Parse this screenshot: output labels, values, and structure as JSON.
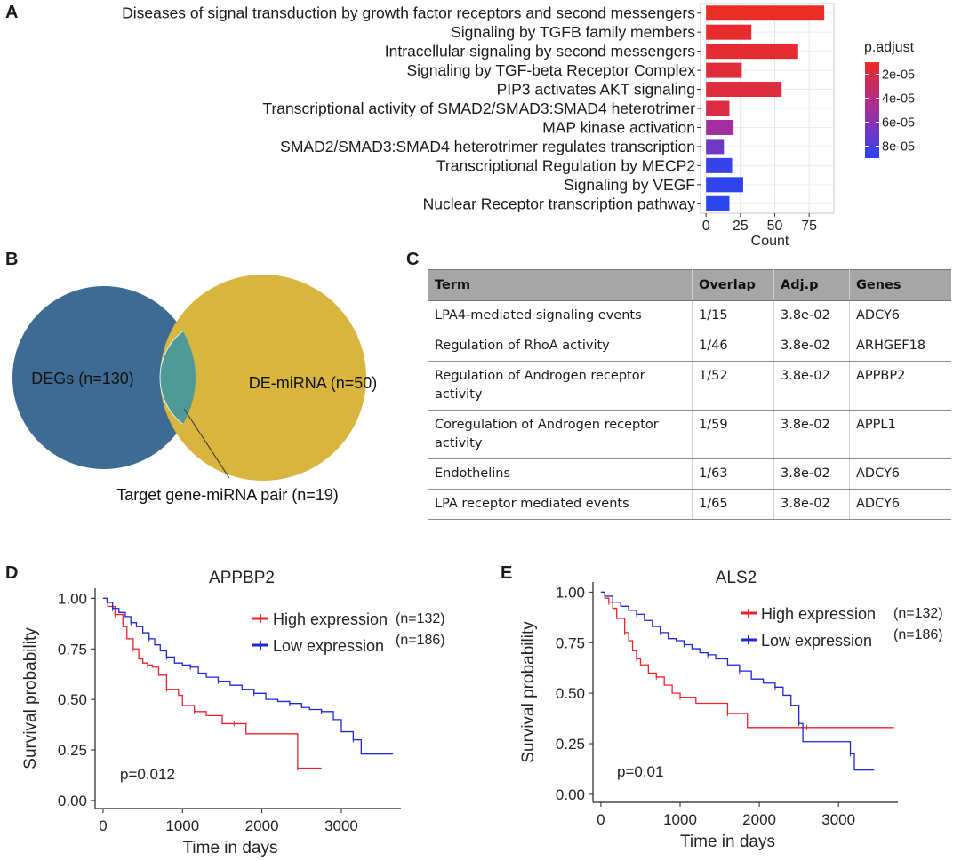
{
  "panel_labels": {
    "a": "A",
    "b": "B",
    "c": "C",
    "d": "D",
    "e": "E"
  },
  "colors": {
    "high": "#e8222a",
    "low": "#1d27d6",
    "venn_degs": "#3d6b94",
    "venn_mirna": "#d8b53f",
    "venn_overlap": "#4f9a98"
  },
  "chart_data": [
    {
      "panel": "A",
      "type": "bar",
      "orientation": "horizontal",
      "categories": [
        "Diseases of signal transduction by growth factor receptors and second messengers",
        "Signaling by TGFB family members",
        "Intracellular signaling by second messengers",
        "Signaling by TGF-beta Receptor Complex",
        "PIP3 activates AKT signaling",
        "Transcriptional activity of SMAD2/SMAD3:SMAD4 heterotrimer",
        "MAP kinase activation",
        "SMAD2/SMAD3:SMAD4 heterotrimer regulates transcription",
        "Transcriptional Regulation by MECP2",
        "Signaling by VEGF",
        "Nuclear Receptor transcription pathway"
      ],
      "values": [
        86,
        33,
        67,
        26,
        55,
        17,
        20,
        13,
        19,
        27,
        17
      ],
      "p_adjust": [
        1e-05,
        1.2e-05,
        1.4e-05,
        1.6e-05,
        1.8e-05,
        2e-05,
        5e-05,
        6.8e-05,
        8.6e-05,
        8.8e-05,
        9e-05
      ],
      "xlabel": "Count",
      "xticks": [
        0,
        25,
        50,
        75
      ],
      "xlim": [
        -4,
        93
      ],
      "legend": {
        "title": "p.adjust",
        "labels": [
          "2e-05",
          "4e-05",
          "6e-05",
          "8e-05"
        ],
        "values": [
          2e-05,
          4e-05,
          6e-05,
          8e-05
        ],
        "range": [
          1e-05,
          9e-05
        ],
        "position": "right"
      }
    },
    {
      "panel": "B",
      "type": "venn",
      "sets": [
        {
          "name": "DEGs (n=130)"
        },
        {
          "name": "DE-miRNA (n=50)"
        }
      ],
      "intersection": "Target gene-miRNA pair (n=19)"
    },
    {
      "panel": "C",
      "type": "table",
      "columns": [
        "Term",
        "Overlap",
        "Adj.p",
        "Genes"
      ],
      "rows": [
        [
          "LPA4-mediated signaling events",
          "1/15",
          "3.8e-02",
          "ADCY6"
        ],
        [
          "Regulation of RhoA activity",
          "1/46",
          "3.8e-02",
          "ARHGEF18"
        ],
        [
          "Regulation of Androgen receptor activity",
          "1/52",
          "3.8e-02",
          "APPBP2"
        ],
        [
          "Coregulation of Androgen receptor activity",
          "1/59",
          "3.8e-02",
          "APPL1"
        ],
        [
          "Endothelins",
          "1/63",
          "3.8e-02",
          "ADCY6"
        ],
        [
          "LPA receptor mediated events",
          "1/65",
          "3.8e-02",
          "ADCY6"
        ]
      ]
    },
    {
      "panel": "D",
      "type": "line",
      "subtype": "kaplan-meier",
      "title": "APPBP2",
      "xlabel": "Time in days",
      "ylabel": "Survival probability",
      "xlim": [
        -100,
        3750
      ],
      "ylim": [
        -0.04,
        1.05
      ],
      "xticks": [
        0,
        1000,
        2000,
        3000
      ],
      "yticks": [
        0.0,
        0.25,
        0.5,
        0.75,
        1.0
      ],
      "ytick_labels": [
        "0.00",
        "0.25",
        "0.50",
        "0.75",
        "1.00"
      ],
      "annotation": "p=0.012",
      "series": [
        {
          "name": "High expression",
          "n_label": "(n=132)",
          "color": "#e8222a",
          "x": [
            0,
            60,
            150,
            250,
            300,
            380,
            450,
            500,
            560,
            620,
            700,
            800,
            950,
            1000,
            1150,
            1300,
            1500,
            1650,
            1800,
            2100,
            2450,
            2750
          ],
          "y": [
            1.0,
            0.96,
            0.92,
            0.86,
            0.8,
            0.75,
            0.7,
            0.68,
            0.67,
            0.66,
            0.62,
            0.55,
            0.52,
            0.47,
            0.44,
            0.42,
            0.38,
            0.38,
            0.33,
            0.33,
            0.16,
            0.16
          ]
        },
        {
          "name": "Low expression",
          "n_label": "(n=186)",
          "color": "#1d27d6",
          "x": [
            0,
            50,
            120,
            200,
            280,
            350,
            420,
            500,
            580,
            650,
            720,
            800,
            900,
            1000,
            1100,
            1200,
            1300,
            1450,
            1600,
            1750,
            1900,
            2050,
            2200,
            2350,
            2500,
            2600,
            2750,
            2900,
            3000,
            3150,
            3250,
            3650
          ],
          "y": [
            1.0,
            0.98,
            0.95,
            0.93,
            0.91,
            0.88,
            0.86,
            0.83,
            0.8,
            0.77,
            0.74,
            0.71,
            0.68,
            0.67,
            0.66,
            0.63,
            0.61,
            0.59,
            0.57,
            0.55,
            0.53,
            0.5,
            0.49,
            0.48,
            0.46,
            0.45,
            0.44,
            0.4,
            0.34,
            0.3,
            0.23,
            0.23
          ]
        }
      ]
    },
    {
      "panel": "E",
      "type": "line",
      "subtype": "kaplan-meier",
      "title": "ALS2",
      "xlabel": "Time in days",
      "ylabel": "Survival probability",
      "xlim": [
        -100,
        3750
      ],
      "ylim": [
        -0.04,
        1.05
      ],
      "xticks": [
        0,
        1000,
        2000,
        3000
      ],
      "yticks": [
        0.0,
        0.25,
        0.5,
        0.75,
        1.0
      ],
      "ytick_labels": [
        "0.00",
        "0.25",
        "0.50",
        "0.75",
        "1.00"
      ],
      "annotation": "p=0.01",
      "series": [
        {
          "name": "High expression",
          "n_label": "(n=132)",
          "color": "#e8222a",
          "x": [
            0,
            50,
            100,
            150,
            200,
            300,
            350,
            400,
            450,
            500,
            600,
            700,
            800,
            900,
            1000,
            1200,
            1400,
            1600,
            1850,
            2050,
            2600,
            3700
          ],
          "y": [
            1.0,
            0.97,
            0.95,
            0.92,
            0.87,
            0.8,
            0.76,
            0.71,
            0.67,
            0.64,
            0.6,
            0.58,
            0.54,
            0.5,
            0.48,
            0.45,
            0.45,
            0.4,
            0.33,
            0.33,
            0.33,
            0.33
          ]
        },
        {
          "name": "Low expression",
          "n_label": "(n=186)",
          "color": "#1d27d6",
          "x": [
            0,
            50,
            150,
            250,
            350,
            450,
            550,
            650,
            750,
            850,
            950,
            1050,
            1150,
            1250,
            1350,
            1450,
            1600,
            1750,
            1900,
            2050,
            2200,
            2300,
            2400,
            2500,
            2550,
            3050,
            3150,
            3200,
            3450
          ],
          "y": [
            1.0,
            0.98,
            0.95,
            0.93,
            0.91,
            0.89,
            0.86,
            0.83,
            0.8,
            0.77,
            0.76,
            0.74,
            0.72,
            0.7,
            0.69,
            0.67,
            0.64,
            0.61,
            0.57,
            0.55,
            0.53,
            0.49,
            0.44,
            0.35,
            0.26,
            0.26,
            0.2,
            0.12,
            0.12
          ]
        }
      ]
    }
  ]
}
